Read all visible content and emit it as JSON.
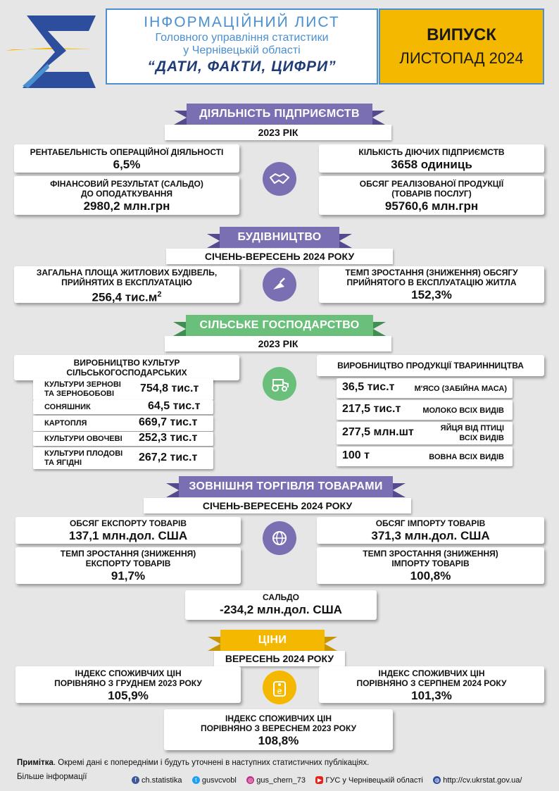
{
  "header": {
    "title_line1": "ІНФОРМАЦІЙНИЙ ЛИСТ",
    "title_line2": "Головного управління статистики",
    "title_line3": "у Чернівецькій області",
    "title_line4": "“ДАТИ, ФАКТИ, ЦИФРИ”",
    "issue_label": "ВИПУСК",
    "issue_date": "ЛИСТОПАД 2024"
  },
  "colors": {
    "purple": "#7b6fb3",
    "green": "#6abf7b",
    "gold": "#f5b800",
    "blue": "#2d4e9d",
    "light_blue": "#4a8fd0"
  },
  "enterprises": {
    "title": "ДІЯЛЬНІСТЬ ПІДПРИЄМСТВ",
    "period": "2023 РІК",
    "icon": "handshake-icon",
    "profitability_label": "РЕНТАБЕЛЬНІСТЬ ОПЕРАЦІЙНОЇ ДІЯЛЬНОСТІ",
    "profitability_value": "6,5%",
    "financial_label1": "ФІНАНСОВИЙ РЕЗУЛЬТАТ (САЛЬДО)",
    "financial_label2": "ДО ОПОДАТКУВАННЯ",
    "financial_value": "2980,2  млн.грн",
    "count_label": "КІЛЬКІСТЬ ДІЮЧИХ ПІДПРИЄМСТВ",
    "count_value": "3658 одиниць",
    "sales_label1": "ОБСЯГ РЕАЛІЗОВАНОЇ ПРОДУКЦІЇ",
    "sales_label2": "(ТОВАРІВ ПОСЛУГ)",
    "sales_value": "95760,6 млн.грн"
  },
  "construction": {
    "title": "БУДІВНИЦТВО",
    "period": "СІЧЕНЬ-ВЕРЕСЕНЬ 2024 РОКУ",
    "icon": "trowel-icon",
    "area_label1": "ЗАГАЛЬНА ПЛОЩА ЖИТЛОВИХ БУДІВЕЛЬ,",
    "area_label2": "ПРИЙНЯТИХ В ЕКСПЛУАТАЦІЮ",
    "area_value": "256,4 тис.м",
    "area_sup": "2",
    "growth_label1": "ТЕМП ЗРОСТАННЯ (ЗНИЖЕННЯ) ОБСЯГУ",
    "growth_label2": "ПРИЙНЯТОГО В ЕКСПЛУАТАЦІЮ ЖИТЛА",
    "growth_value": "152,3%"
  },
  "agriculture": {
    "title": "СІЛЬСЬКЕ ГОСПОДАРСТВО",
    "period": "2023 РІК",
    "icon": "tractor-icon",
    "crops_title1": "ВИРОБНИЦТВО КУЛЬТУР",
    "crops_title2": "СІЛЬСЬКОГОСПОДАРСЬКИХ",
    "crops": [
      {
        "name1": "КУЛЬТУРИ ЗЕРНОВІ",
        "name2": "ТА ЗЕРНОБОБОВІ",
        "value": "754,8 тис.т"
      },
      {
        "name1": "СОНЯШНИК",
        "name2": "",
        "value": "64,5 тис.т"
      },
      {
        "name1": "КАРТОПЛЯ",
        "name2": "",
        "value": "669,7 тис.т"
      },
      {
        "name1": "КУЛЬТУРИ ОВОЧЕВІ",
        "name2": "",
        "value": "252,3 тис.т"
      },
      {
        "name1": "КУЛЬТУРИ ПЛОДОВІ",
        "name2": "ТА ЯГІДНІ",
        "value": "267,2 тис.т"
      }
    ],
    "livestock_title": "ВИРОБНИЦТВО ПРОДУКЦІЇ ТВАРИННИЦТВА",
    "livestock": [
      {
        "value": "36,5 тис.т",
        "name1": "М'ЯСО (ЗАБІЙНА МАСА)",
        "name2": ""
      },
      {
        "value": "217,5 тис.т",
        "name1": "МОЛОКО ВСІХ ВИДІВ",
        "name2": ""
      },
      {
        "value": "277,5 млн.шт",
        "name1": "ЯЙЦЯ ВІД ПТИЦІ",
        "name2": "ВСІХ ВИДІВ"
      },
      {
        "value": "100 т",
        "name1": "ВОВНА ВСІХ ВИДІВ",
        "name2": ""
      }
    ]
  },
  "trade": {
    "title": "ЗОВНІШНЯ ТОРГІВЛЯ ТОВАРАМИ",
    "period": "СІЧЕНЬ-ВЕРЕСЕНЬ 2024 РОКУ",
    "icon": "globe-icon",
    "export_label": "ОБСЯГ ЕКСПОРТУ ТОВАРІВ",
    "export_value": "137,1 млн.дол. США",
    "import_label": "ОБСЯГ ІМПОРТУ ТОВАРІВ",
    "import_value": "371,3 млн.дол. США",
    "export_growth_label1": "ТЕМП ЗРОСТАННЯ (ЗНИЖЕННЯ)",
    "export_growth_label2": "ЕКСПОРТУ ТОВАРІВ",
    "export_growth_value": "91,7%",
    "import_growth_label1": "ТЕМП ЗРОСТАННЯ (ЗНИЖЕННЯ)",
    "import_growth_label2": "ІМПОРТУ ТОВАРІВ",
    "import_growth_value": "100,8%",
    "balance_label": "САЛЬДО",
    "balance_value": "-234,2 млн.дол. США"
  },
  "prices": {
    "title": "ЦІНИ",
    "period": "ВЕРЕСЕНЬ 2024 РОКУ",
    "icon": "price-tag-icon",
    "dec_label1": "ІНДЕКС СПОЖИВЧИХ ЦІН",
    "dec_label2": "ПОРІВНЯНО З ГРУДНЕМ 2023 РОКУ",
    "dec_value": "105,9%",
    "aug_label1": "ІНДЕКС СПОЖИВЧИХ ЦІН",
    "aug_label2": "ПОРІВНЯНО З СЕРПНЕМ 2024 РОКУ",
    "aug_value": "101,3%",
    "sep_label1": "ІНДЕКС СПОЖИВЧИХ ЦІН",
    "sep_label2": "ПОРІВНЯНО З ВЕРЕСНЕМ 2023 РОКУ",
    "sep_value": "108,8%"
  },
  "footer": {
    "note_bold": "Примітка",
    "note_text": ". Окремі дані є попередніми і будуть уточнені в наступних статистичних публікаціях.",
    "more": "Більше інформації",
    "facebook": "ch.statistika",
    "twitter": "gusvcvobl",
    "instagram": "gus_chern_73",
    "youtube": "ГУС у Чернівецькій області",
    "website": "http://cv.ukrstat.gov.ua/"
  }
}
